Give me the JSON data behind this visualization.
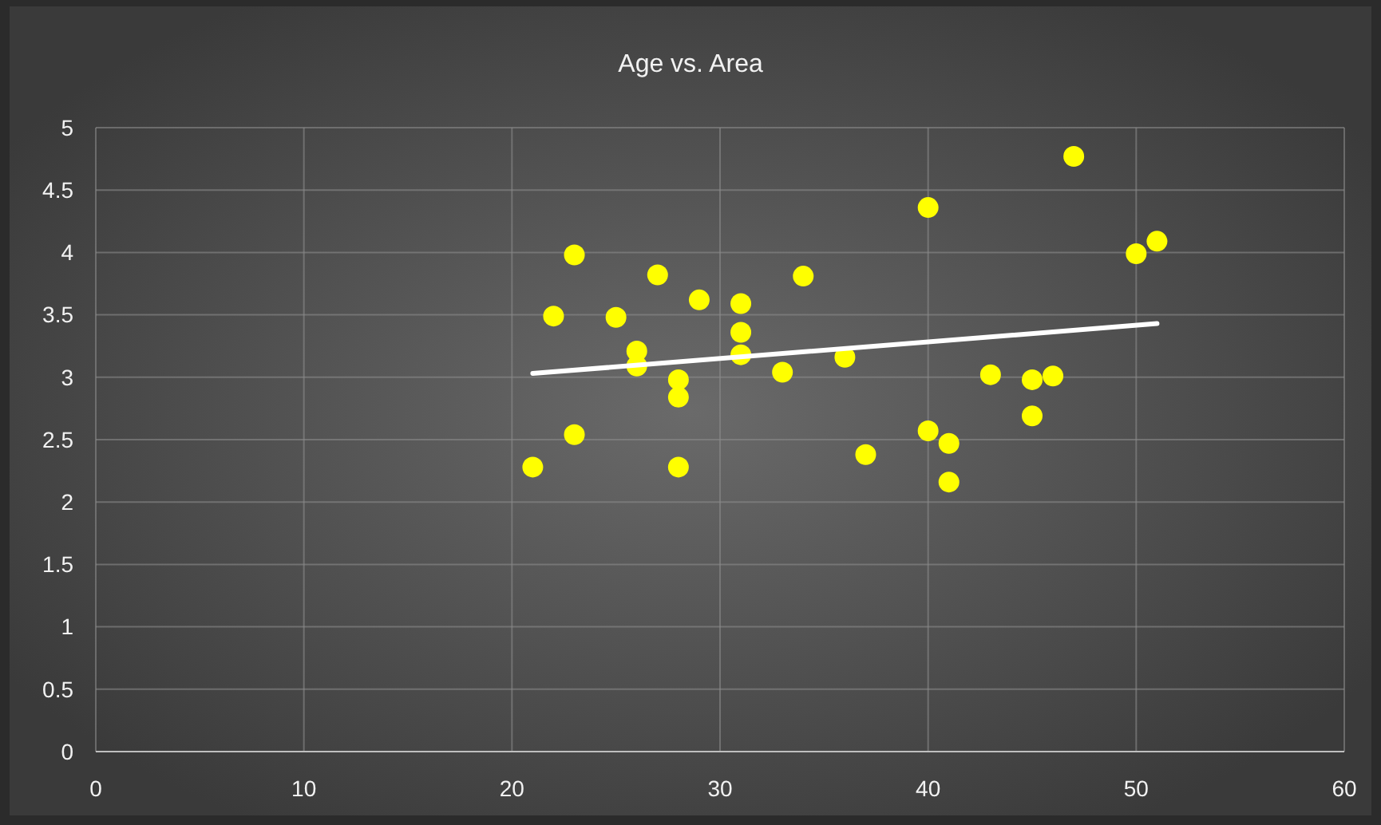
{
  "chart_data": {
    "type": "scatter",
    "title": "Age vs. Area",
    "xlim": [
      0,
      60
    ],
    "xticks": [
      0,
      10,
      20,
      30,
      40,
      50,
      60
    ],
    "ylim": [
      0,
      5
    ],
    "yticks": [
      0,
      0.5,
      1,
      1.5,
      2,
      2.5,
      3,
      3.5,
      4,
      4.5,
      5
    ],
    "grid": true,
    "series": [
      {
        "color": "#ffff00",
        "marker": "circle",
        "x": [
          21,
          22,
          23,
          23,
          25,
          26,
          26,
          27,
          28,
          28,
          28,
          29,
          31,
          31,
          31,
          33,
          34,
          36,
          37,
          40,
          40,
          41,
          41,
          43,
          45,
          45,
          46,
          47,
          50,
          51
        ],
        "values": [
          2.28,
          3.49,
          3.98,
          2.54,
          3.48,
          3.21,
          3.09,
          3.82,
          2.98,
          2.84,
          2.28,
          3.62,
          3.59,
          3.36,
          3.18,
          3.04,
          3.81,
          3.16,
          2.38,
          4.36,
          2.57,
          2.47,
          2.16,
          3.02,
          2.98,
          2.69,
          3.01,
          4.77,
          3.99,
          4.09
        ]
      },
      {
        "type": "line",
        "marker": "none",
        "color": "#ffffff",
        "x": [
          21,
          51
        ],
        "values": [
          3.03,
          3.43
        ]
      }
    ]
  }
}
